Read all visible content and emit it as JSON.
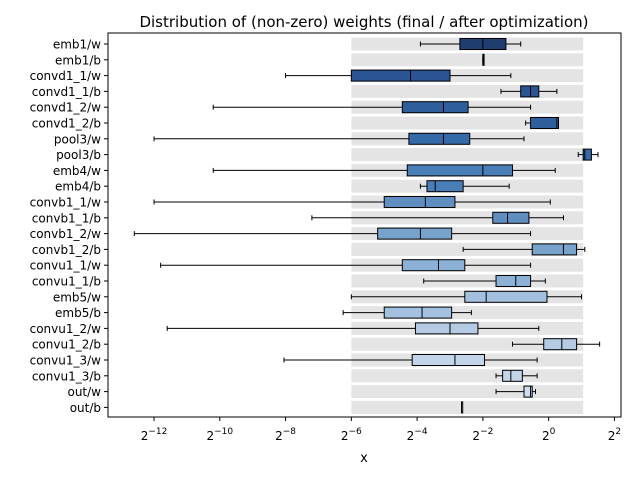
{
  "chart_data": {
    "type": "boxplot",
    "title": "Distribution of (non-zero) weights (final / after optimization)",
    "xlabel": "x",
    "ylabel": "",
    "xscale": "log2",
    "xlim_log2": [
      -13.4,
      2.2
    ],
    "xticks": [
      {
        "base": "2",
        "exp": "−12",
        "value": -12
      },
      {
        "base": "2",
        "exp": "−10",
        "value": -10
      },
      {
        "base": "2",
        "exp": "−8",
        "value": -8
      },
      {
        "base": "2",
        "exp": "−6",
        "value": -6
      },
      {
        "base": "2",
        "exp": "−4",
        "value": -4
      },
      {
        "base": "2",
        "exp": "−2",
        "value": -2
      },
      {
        "base": "2",
        "exp": "0",
        "value": 0
      },
      {
        "base": "2",
        "exp": "2",
        "value": 2
      }
    ],
    "background_band_log2": [
      -6,
      1.05
    ],
    "series": [
      {
        "label": "emb1/w",
        "whislo": -3.9,
        "q1": -2.7,
        "med": -2.0,
        "q3": -1.3,
        "whishi": -0.85,
        "color": "#1f3d6e"
      },
      {
        "label": "emb1/b",
        "whislo": -2.0,
        "q1": -2.0,
        "med": -2.0,
        "q3": -2.0,
        "whishi": -2.0,
        "color": "#1f3d6e"
      },
      {
        "label": "convd1_1/w",
        "whislo": -8.0,
        "q1": -6.0,
        "med": -4.2,
        "q3": -3.0,
        "whishi": -1.15,
        "color": "#2a5494"
      },
      {
        "label": "convd1_1/b",
        "whislo": -1.45,
        "q1": -0.85,
        "med": -0.55,
        "q3": -0.3,
        "whishi": 0.25,
        "color": "#2a5494"
      },
      {
        "label": "convd1_2/w",
        "whislo": -10.2,
        "q1": -4.45,
        "med": -3.2,
        "q3": -2.45,
        "whishi": -0.55,
        "color": "#2e5f9c"
      },
      {
        "label": "convd1_2/b",
        "whislo": -0.7,
        "q1": -0.55,
        "med": 0.25,
        "q3": 0.3,
        "whishi": 0.3,
        "color": "#2e5f9c"
      },
      {
        "label": "pool3/w",
        "whislo": -12.0,
        "q1": -4.25,
        "med": -3.2,
        "q3": -2.4,
        "whishi": -0.75,
        "color": "#356aa8"
      },
      {
        "label": "pool3/b",
        "whislo": 0.9,
        "q1": 1.05,
        "med": 1.1,
        "q3": 1.3,
        "whishi": 1.5,
        "color": "#356aa8"
      },
      {
        "label": "emb4/w",
        "whislo": -10.2,
        "q1": -4.3,
        "med": -2.0,
        "q3": -1.1,
        "whishi": 0.2,
        "color": "#4a7eb6"
      },
      {
        "label": "emb4/b",
        "whislo": -3.9,
        "q1": -3.7,
        "med": -3.45,
        "q3": -2.6,
        "whishi": -1.2,
        "color": "#4a7eb6"
      },
      {
        "label": "convb1_1/w",
        "whislo": -12.0,
        "q1": -5.0,
        "med": -3.75,
        "q3": -2.85,
        "whishi": 0.05,
        "color": "#5f8fc0"
      },
      {
        "label": "convb1_1/b",
        "whislo": -7.2,
        "q1": -1.7,
        "med": -1.25,
        "q3": -0.6,
        "whishi": 0.45,
        "color": "#5f8fc0"
      },
      {
        "label": "convb1_2/w",
        "whislo": -12.6,
        "q1": -5.2,
        "med": -3.9,
        "q3": -2.95,
        "whishi": -0.55,
        "color": "#78a3cc"
      },
      {
        "label": "convb1_2/b",
        "whislo": -2.6,
        "q1": -0.5,
        "med": 0.45,
        "q3": 0.85,
        "whishi": 1.1,
        "color": "#78a3cc"
      },
      {
        "label": "convu1_1/w",
        "whislo": -11.8,
        "q1": -4.45,
        "med": -3.35,
        "q3": -2.55,
        "whishi": -0.55,
        "color": "#8bb2d6"
      },
      {
        "label": "convu1_1/b",
        "whislo": -3.8,
        "q1": -1.6,
        "med": -1.0,
        "q3": -0.55,
        "whishi": -0.1,
        "color": "#8bb2d6"
      },
      {
        "label": "emb5/w",
        "whislo": -6.0,
        "q1": -2.55,
        "med": -1.9,
        "q3": -0.05,
        "whishi": 1.0,
        "color": "#a3c1de"
      },
      {
        "label": "emb5/b",
        "whislo": -6.25,
        "q1": -5.0,
        "med": -3.85,
        "q3": -2.95,
        "whishi": -2.35,
        "color": "#a3c1de"
      },
      {
        "label": "convu1_2/w",
        "whislo": -11.6,
        "q1": -4.05,
        "med": -3.0,
        "q3": -2.15,
        "whishi": -0.3,
        "color": "#b4cbe3"
      },
      {
        "label": "convu1_2/b",
        "whislo": -1.1,
        "q1": -0.15,
        "med": 0.4,
        "q3": 0.85,
        "whishi": 1.55,
        "color": "#b4cbe3"
      },
      {
        "label": "convu1_3/w",
        "whislo": -8.05,
        "q1": -4.15,
        "med": -2.85,
        "q3": -1.95,
        "whishi": -0.35,
        "color": "#c3d5e8"
      },
      {
        "label": "convu1_3/b",
        "whislo": -1.6,
        "q1": -1.4,
        "med": -1.15,
        "q3": -0.8,
        "whishi": -0.35,
        "color": "#c3d5e8"
      },
      {
        "label": "out/w",
        "whislo": -1.6,
        "q1": -0.75,
        "med": -0.55,
        "q3": -0.5,
        "whishi": -0.4,
        "color": "#cfdcec"
      },
      {
        "label": "out/b",
        "whislo": -2.65,
        "q1": -2.65,
        "med": -2.65,
        "q3": -2.65,
        "whishi": -2.65,
        "color": "#cfdcec"
      }
    ]
  }
}
